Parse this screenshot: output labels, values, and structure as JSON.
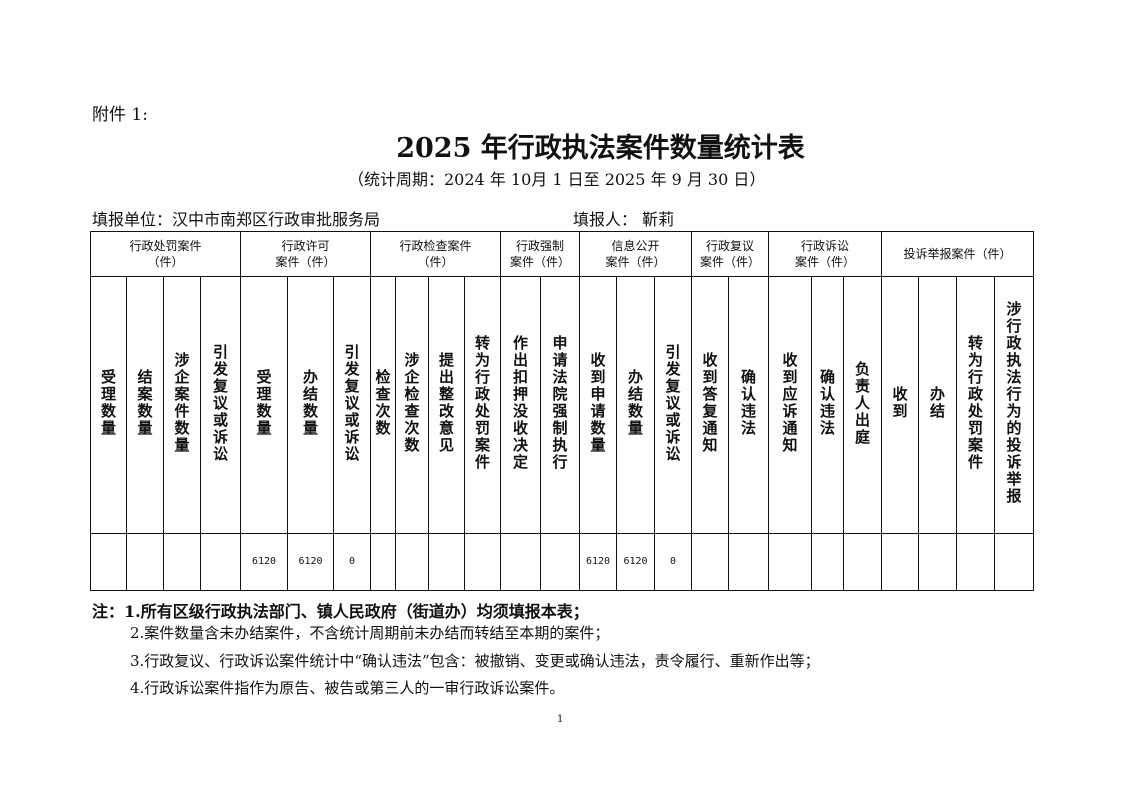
{
  "attachment": "附件 1:",
  "title": "2025 年行政执法案件数量统计表",
  "period": "（统计周期：2024 年 10月 1 日至 2025 年 9 月 30 日）",
  "unit": "填报单位：汉中市南郑区行政审批服务局",
  "filler": "填报人：  靳莉",
  "groups": [
    {
      "label": "行政处罚案件\n（件）",
      "span": 4
    },
    {
      "label": "行政许可\n案件（件）",
      "span": 3
    },
    {
      "label": "行政检查案件\n（件）",
      "span": 4
    },
    {
      "label": "行政强制\n案件（件）",
      "span": 2
    },
    {
      "label": "信息公开\n案件（件）",
      "span": 3
    },
    {
      "label": "行政复议\n案件（件）",
      "span": 2
    },
    {
      "label": "行政诉讼\n案件（件）",
      "span": 3
    },
    {
      "label": "投诉举报案件（件）",
      "span": 4
    }
  ],
  "columns": [
    "受理数量",
    "结案数量",
    "涉企案件数量",
    "引发复议或诉讼",
    "受理数量",
    "办结数量",
    "引发复议或诉讼",
    "检查次数",
    "涉企检查次数",
    "提出整改意见",
    "转为行政处罚案件",
    "作出扣押没收决定",
    "申请法院强制执行",
    "收到申请数量",
    "办结数量",
    "引发复议或诉讼",
    "收到答复通知",
    "确认违法",
    "收到应诉通知",
    "确认违法",
    "负责人出庭",
    "收到",
    "办结",
    "转为行政处罚案件",
    "涉行政执法行为的投诉举报"
  ],
  "values": [
    "",
    "",
    "",
    "",
    "6120",
    "6120",
    "0",
    "",
    "",
    "",
    "",
    "",
    "",
    "6120",
    "6120",
    "0",
    "",
    "",
    "",
    "",
    "",
    "",
    "",
    "",
    ""
  ],
  "notes": [
    "注：1.所有区级行政执法部门、镇人民政府（街道办）均须填报本表；",
    "2.案件数量含未办结案件，不含统计周期前未办结而转结至本期的案件；",
    "3.行政复议、行政诉讼案件统计中“确认违法”包含：被撤销、变更或确认违法，责令履行、重新作出等；",
    "4.行政诉讼案件指作为原告、被告或第三人的一审行政诉讼案件。"
  ],
  "page_number": "1"
}
